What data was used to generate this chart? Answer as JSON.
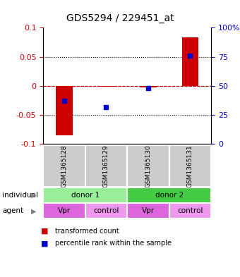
{
  "title": "GDS5294 / 229451_at",
  "samples": [
    "GSM1365128",
    "GSM1365129",
    "GSM1365130",
    "GSM1365131"
  ],
  "bar_values": [
    -0.085,
    -0.002,
    -0.003,
    0.083
  ],
  "percentile_values": [
    37,
    32,
    48,
    76
  ],
  "ylim_left": [
    -0.1,
    0.1
  ],
  "ylim_right": [
    0,
    100
  ],
  "yticks_left": [
    -0.1,
    -0.05,
    0,
    0.05,
    0.1
  ],
  "yticks_right": [
    0,
    25,
    50,
    75,
    100
  ],
  "bar_color": "#cc0000",
  "dot_color": "#0000cc",
  "individuals": [
    {
      "label": "donor 1",
      "span": [
        0,
        2
      ],
      "color": "#99ee99"
    },
    {
      "label": "donor 2",
      "span": [
        2,
        4
      ],
      "color": "#44cc44"
    }
  ],
  "agents": [
    {
      "label": "Vpr",
      "span": [
        0,
        1
      ],
      "color": "#dd66dd"
    },
    {
      "label": "control",
      "span": [
        1,
        2
      ],
      "color": "#ee99ee"
    },
    {
      "label": "Vpr",
      "span": [
        2,
        3
      ],
      "color": "#dd66dd"
    },
    {
      "label": "control",
      "span": [
        3,
        4
      ],
      "color": "#ee99ee"
    }
  ],
  "legend_items": [
    {
      "color": "#cc0000",
      "label": "transformed count"
    },
    {
      "color": "#0000cc",
      "label": "percentile rank within the sample"
    }
  ],
  "sample_bg_color": "#cccccc",
  "left_label_color": "#cc0000",
  "right_label_color": "#0000cc"
}
